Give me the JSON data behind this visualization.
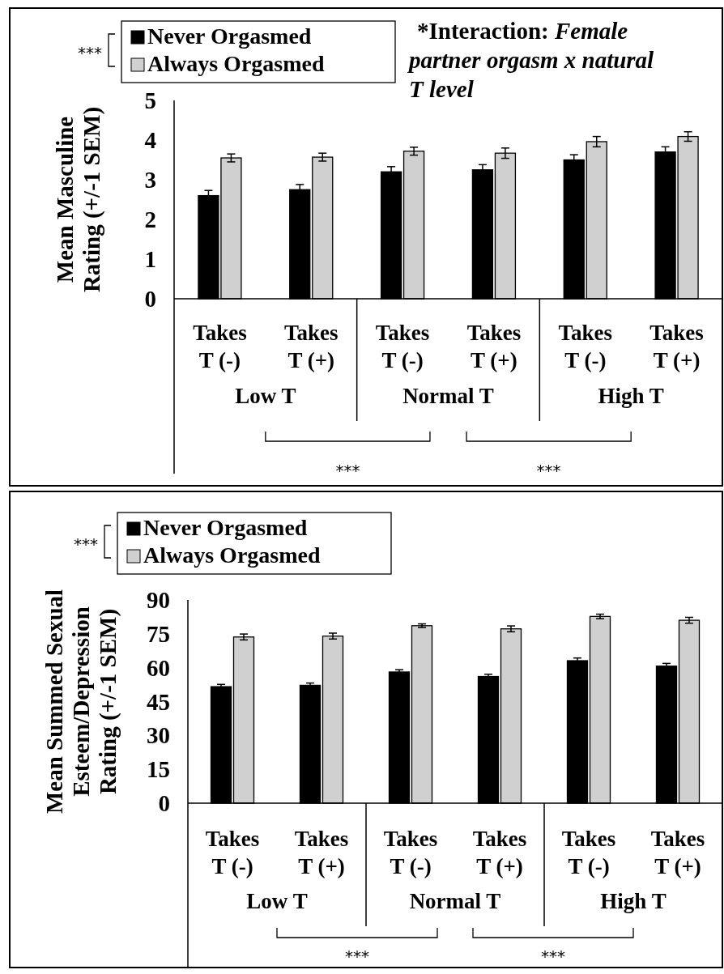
{
  "chart_data": [
    {
      "type": "bar",
      "title": "*Interaction:",
      "subtitle": "Female partner orgasm x natural T level",
      "ylabel": "Mean Masculine Rating (+/-1 SEM)",
      "categories": [
        "Takes T (-)",
        "Takes T (+)",
        "Takes T (-)",
        "Takes T (+)",
        "Takes T (-)",
        "Takes T (+)"
      ],
      "series": [
        {
          "name": "Never Orgasmed",
          "color": "#000000",
          "values": [
            2.6,
            2.75,
            3.2,
            3.25,
            3.5,
            3.7
          ],
          "errors": [
            0.13,
            0.13,
            0.13,
            0.13,
            0.13,
            0.13
          ]
        },
        {
          "name": "Always Orgasmed",
          "color": "#d0d0d0",
          "values": [
            3.55,
            3.57,
            3.72,
            3.67,
            3.96,
            4.09
          ],
          "errors": [
            0.1,
            0.1,
            0.1,
            0.13,
            0.13,
            0.12
          ]
        }
      ],
      "ylim": [
        0,
        5
      ],
      "yticks": [
        0,
        1,
        2,
        3,
        4,
        5
      ],
      "grid": false,
      "legend": "top left",
      "annotations": [
        "***",
        "Low T",
        "Normal T",
        "High T",
        "***",
        "***"
      ]
    },
    {
      "type": "bar",
      "ylabel": "Mean Summed Sexual Esteem/Depression Rating (+/-1 SEM)",
      "categories": [
        "Takes T (-)",
        "Takes T (+)",
        "Takes T (-)",
        "Takes T (+)",
        "Takes T (-)",
        "Takes T (+)"
      ],
      "series": [
        {
          "name": "Never Orgasmed",
          "color": "#000000",
          "values": [
            51.6,
            52.2,
            58.1,
            56.1,
            63.1,
            60.7
          ],
          "errors": [
            1,
            1,
            1,
            1,
            1.2,
            1.2
          ]
        },
        {
          "name": "Always Orgasmed",
          "color": "#d0d0d0",
          "values": [
            73.6,
            74.0,
            78.6,
            77.2,
            82.7,
            81.0
          ],
          "errors": [
            1.3,
            1.3,
            0.8,
            1.3,
            1,
            1.3
          ]
        }
      ],
      "ylim": [
        0,
        90
      ],
      "yticks": [
        0,
        15,
        30,
        45,
        60,
        75,
        90
      ],
      "grid": false,
      "legend": "top left",
      "annotations": [
        "***",
        "Low T",
        "Normal T",
        "High T",
        "***",
        "***"
      ]
    }
  ]
}
